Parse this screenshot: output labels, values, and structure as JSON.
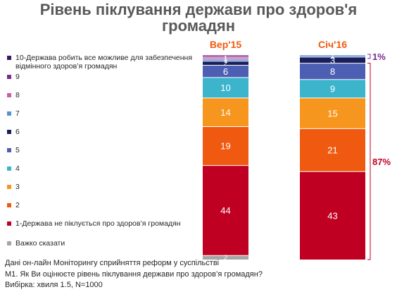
{
  "title": "Рівень піклування держави про здоров'я громадян",
  "title_lines": [
    "Рівень піклування держави про здоров'я",
    "громадян"
  ],
  "chart_data": {
    "type": "bar",
    "stacked": true,
    "categories": [
      "Вер'15",
      "Січ'16"
    ],
    "series": [
      {
        "name": "Важко сказати",
        "color": "#a6a6a6",
        "values": [
          2,
          0
        ]
      },
      {
        "name": "1-Держава не піклується про здоров’я громадян",
        "color": "#c00022",
        "values": [
          44,
          43
        ]
      },
      {
        "name": "2",
        "color": "#f05a10",
        "values": [
          19,
          21
        ]
      },
      {
        "name": "3",
        "color": "#f7961e",
        "values": [
          14,
          15
        ]
      },
      {
        "name": "4",
        "color": "#3cb4cc",
        "values": [
          10,
          9
        ]
      },
      {
        "name": "5",
        "color": "#4d5fb2",
        "values": [
          6,
          8
        ]
      },
      {
        "name": "6",
        "color": "#1a1f5c",
        "values": [
          2,
          3
        ]
      },
      {
        "name": "7",
        "color": "#5b8fd1",
        "values": [
          1,
          1
        ]
      },
      {
        "name": "8",
        "color": "#c85fa8",
        "values": [
          1,
          0
        ]
      },
      {
        "name": "9",
        "color": "#7b2a8e",
        "values": [
          1,
          0
        ]
      },
      {
        "name": "10-Держава робить все можливе для забезпечення відмінного здоров’я громадян",
        "color": "#3d1a5c",
        "values": [
          0,
          0
        ]
      }
    ],
    "data_labels": [
      [
        "2",
        "44",
        "19",
        "14",
        "10",
        "6",
        "2",
        "1",
        "1",
        "",
        ""
      ],
      [
        "",
        "43",
        "21",
        "15",
        "9",
        "8",
        "3",
        "1",
        "",
        "",
        ""
      ]
    ],
    "brackets": [
      {
        "label": "1%",
        "color": "#7b2a8e"
      },
      {
        "label": "87%",
        "color": "#c00022"
      }
    ],
    "category_label_color": "#f05a10",
    "legend_order": "reverse"
  },
  "footer": [
    "Дані он-лайн Моніторингу сприйняття реформ у суспільстві",
    "М1. Як Ви оцінюєте рівень піклування держави про здоров’я громадян?",
    "Вибірка: хвиля 1.5, N=1000"
  ]
}
